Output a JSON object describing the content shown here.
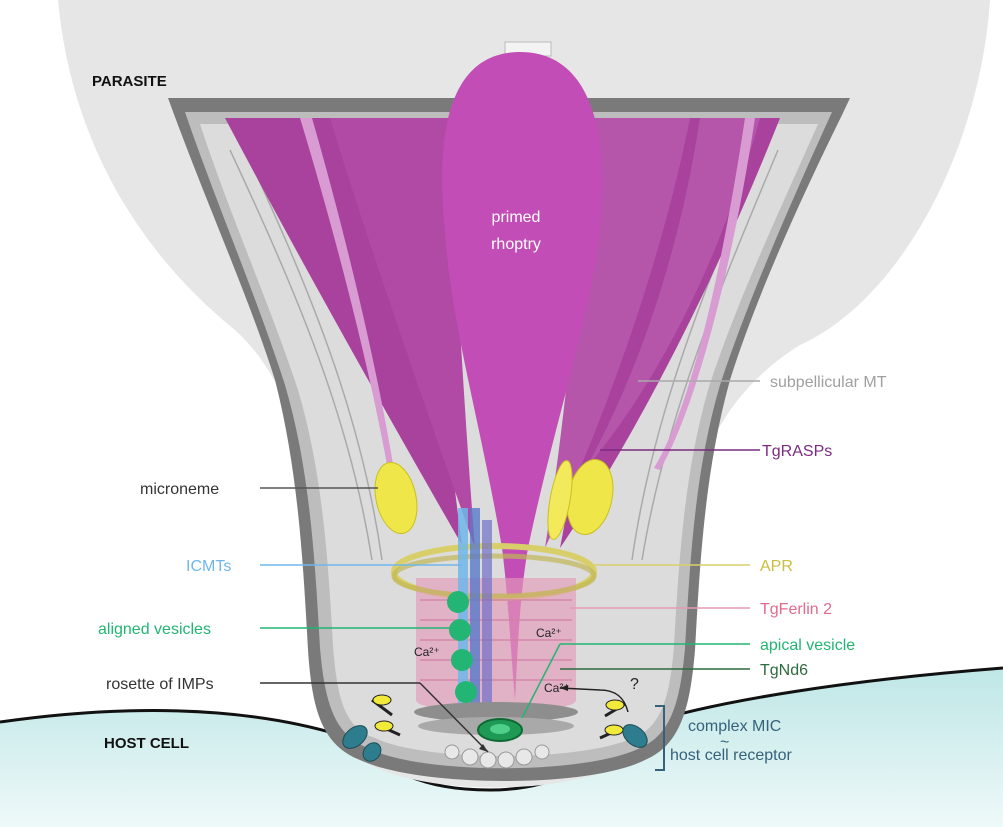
{
  "labels": {
    "parasite": "PARASITE",
    "host_cell": "HOST CELL",
    "primed_rhoptry_line1": "primed",
    "primed_rhoptry_line2": "rhoptry",
    "subpellicular_mt": "subpellicular MT",
    "tgrasps": "TgRASPs",
    "microneme": "microneme",
    "icmts": "ICMTs",
    "apr": "APR",
    "aligned_vesicles": "aligned vesicles",
    "tgferlin2": "TgFerlin 2",
    "apical_vesicle": "apical vesicle",
    "tgnd6": "TgNd6",
    "rosette_of_imps": "rosette of IMPs",
    "complex_mic": "complex MIC",
    "host_cell_receptor": "host cell receptor",
    "calcium_1": "Ca²⁺",
    "calcium_2": "Ca²⁺",
    "calcium_3": "Ca²⁺",
    "question": "?",
    "tilde": "~"
  },
  "colors": {
    "parasite_fill": "#e6e6e6",
    "pellicle": "#7a7a7a",
    "rhoptry": "#a8429c",
    "rhoptry_primed": "#c24db6",
    "microneme": "#efe64a",
    "icmt": "#6fb7ea",
    "apr": "#d9cf6a",
    "ferlin": "#e49ab8",
    "aligned_vesicle": "#22b573",
    "apical_vesicle": "#1e9a55",
    "host": "#c9ecec",
    "mic_yellow": "#f2ea3a",
    "receptor_teal": "#2e7d8e"
  }
}
